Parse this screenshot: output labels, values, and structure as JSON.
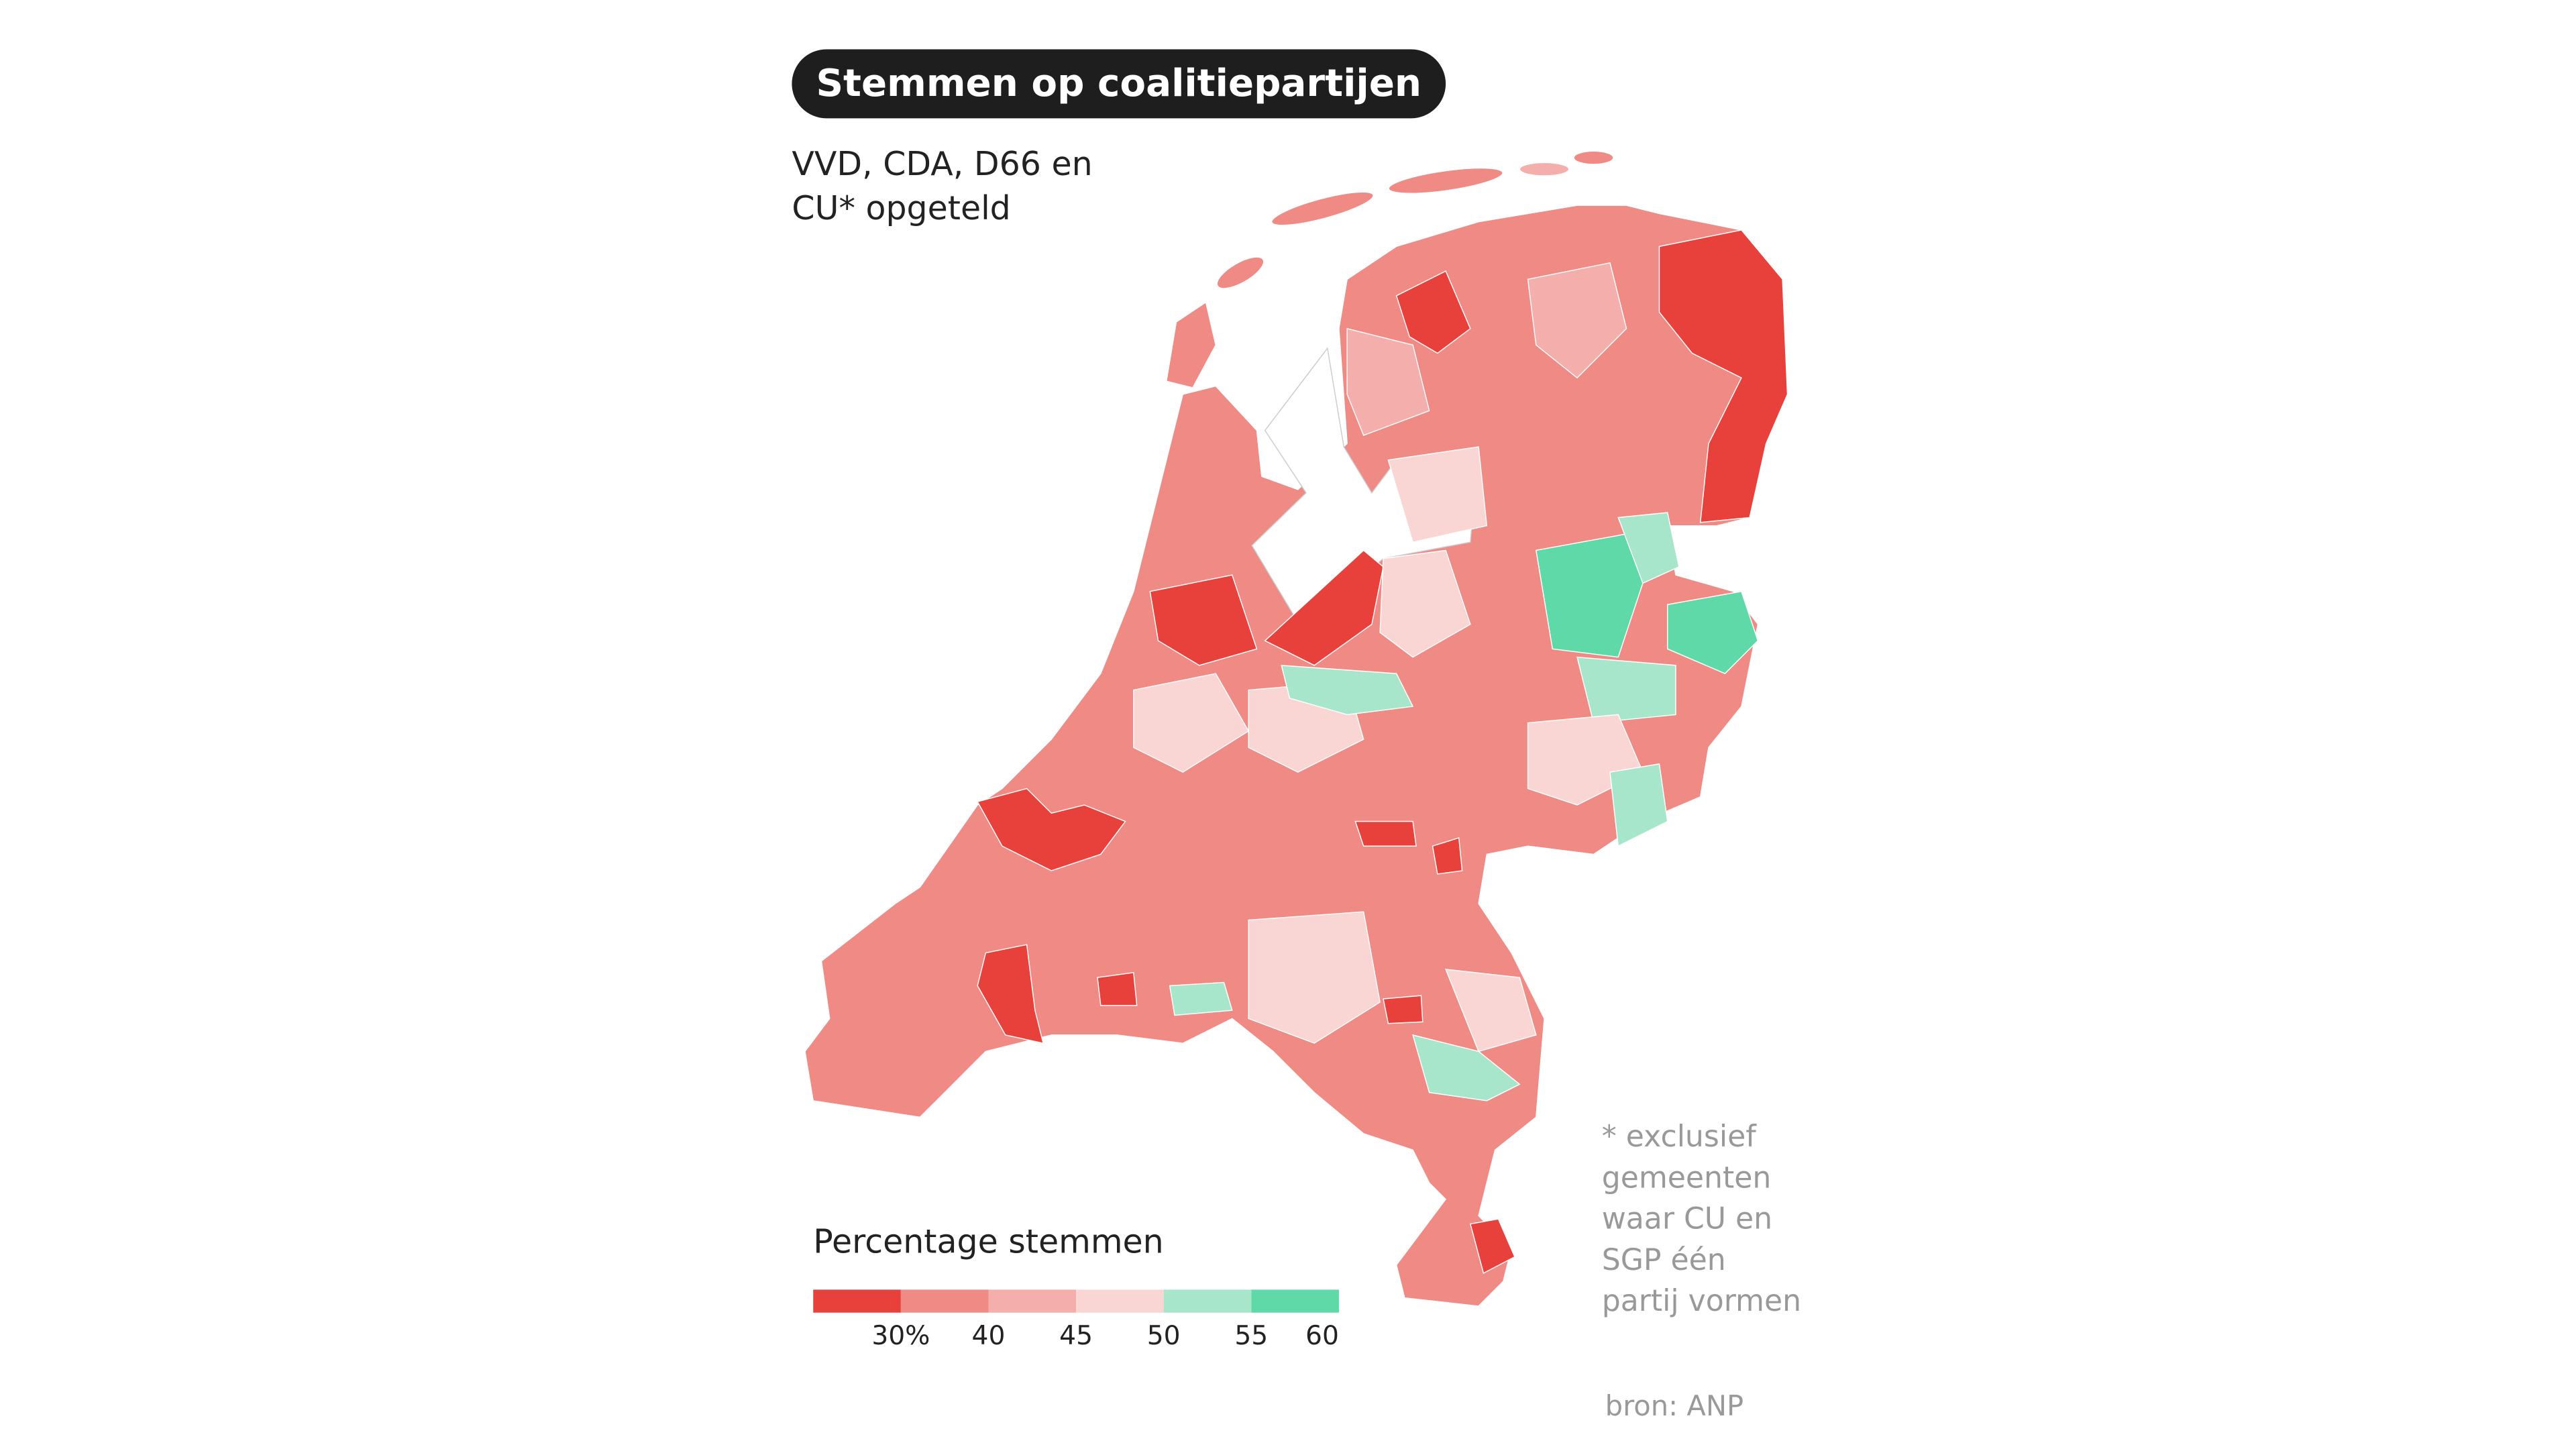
{
  "header": {
    "title": "Stemmen op coalitiepartijen",
    "subtitle": [
      "VVD, CDA, D66 en",
      "CU* opgeteld"
    ]
  },
  "legend": {
    "title": "Percentage stemmen",
    "colors": [
      "#e8413b",
      "#ef8a85",
      "#f4aeab",
      "#f9d6d4",
      "#a8e6cc",
      "#5fd9a8"
    ],
    "ticks": [
      {
        "value": 30,
        "label": "30%"
      },
      40,
      45,
      50,
      55,
      60
    ]
  },
  "footnote": [
    "* exclusief",
    "gemeenten",
    "waar CU en",
    "SGP één",
    "partij vormen"
  ],
  "source": "bron: ANP"
}
